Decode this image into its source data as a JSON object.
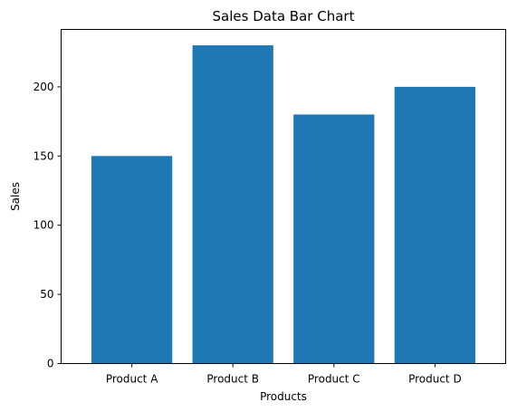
{
  "chart_data": {
    "type": "bar",
    "title": "Sales Data Bar Chart",
    "xlabel": "Products",
    "ylabel": "Sales",
    "categories": [
      "Product A",
      "Product B",
      "Product C",
      "Product D"
    ],
    "values": [
      150,
      230,
      180,
      200
    ],
    "ylim": [
      0,
      241.5
    ],
    "yticks": [
      0,
      50,
      100,
      150,
      200
    ],
    "bar_color": "#1f77b4",
    "grid": false,
    "legend": "none"
  }
}
